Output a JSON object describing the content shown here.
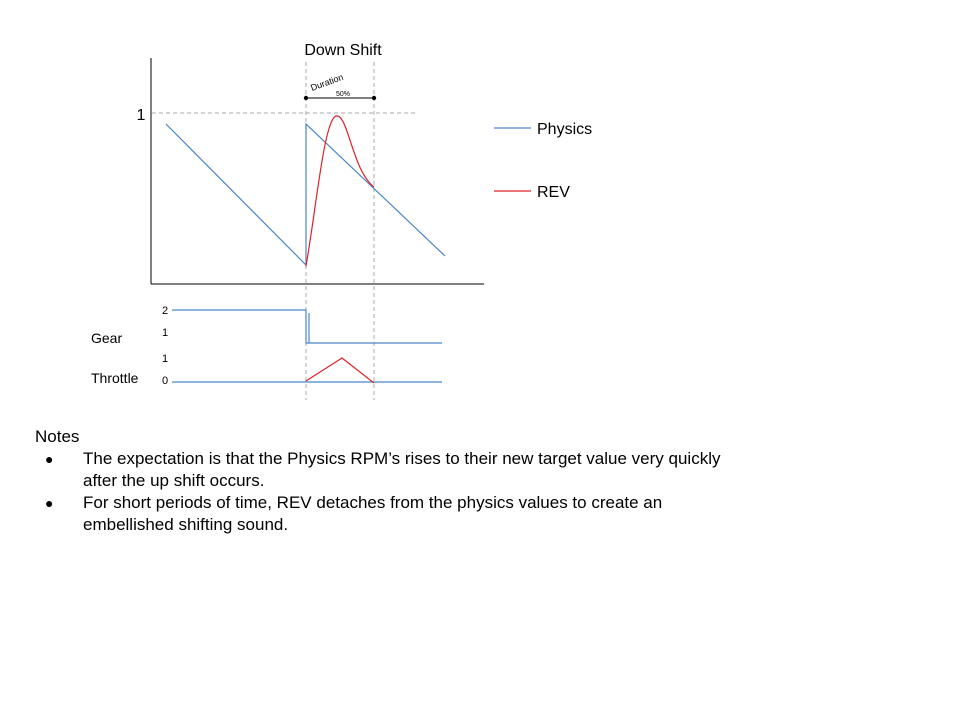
{
  "diagram": {
    "title": "Down Shift",
    "y_tick_label": "1",
    "duration_label": "Duration",
    "duration_value": "50%",
    "legend": [
      {
        "label": "Physics",
        "color": "#4a86c8"
      },
      {
        "label": "REV",
        "color": "#e0202a"
      }
    ],
    "gear": {
      "label": "Gear",
      "tick_high": "2",
      "tick_low": "1"
    },
    "throttle": {
      "label": "Throttle",
      "tick_high": "1",
      "tick_low": "0"
    }
  },
  "notes": {
    "heading": "Notes",
    "items": [
      "The expectation is that the Physics RPM’s rises to their new target value very quickly after the up shift occurs.",
      "For short periods of time, REV detaches from the physics values to create an embellished shifting sound."
    ]
  }
}
